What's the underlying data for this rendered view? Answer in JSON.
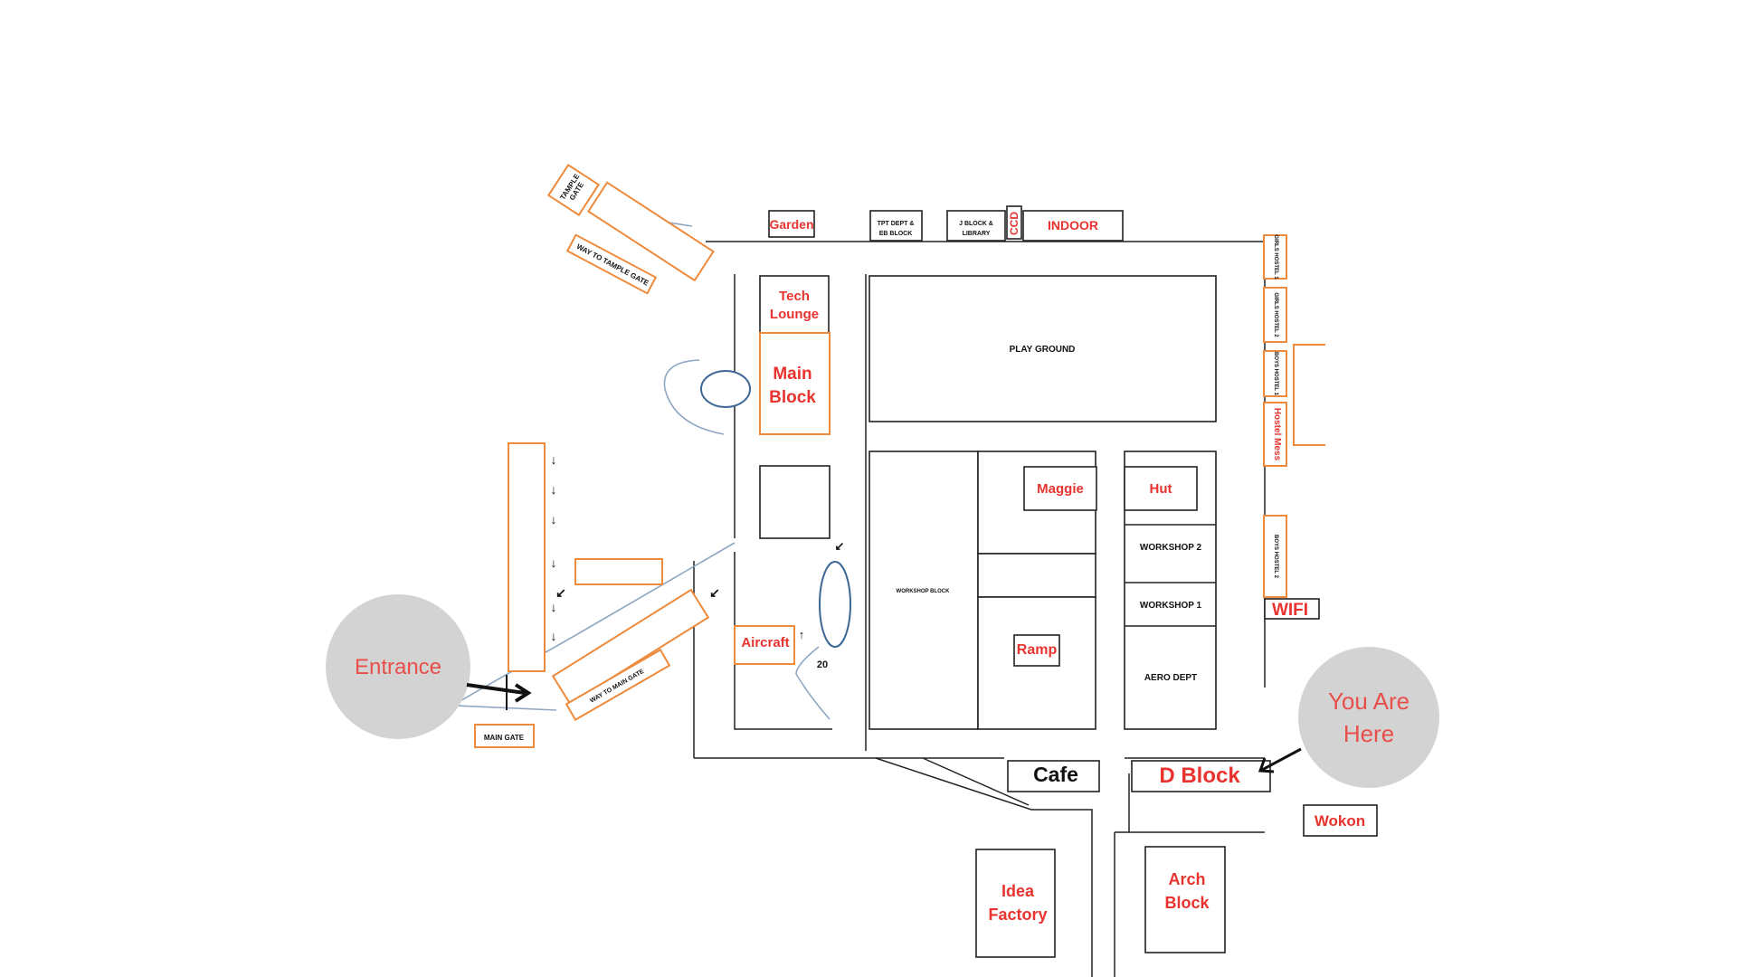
{
  "map": {
    "colors": {
      "orange_outline": "#ee8a3c",
      "red_text": "#e8332f",
      "marker_gray": "#d3d3d3",
      "marker_text": "#e84f4b",
      "oval_blue": "#3d6794"
    },
    "markers": {
      "entrance": "Entrance",
      "you_are_here_line1": "You Are",
      "you_are_here_line2": "Here"
    },
    "labels": {
      "garden": "Garden",
      "tpt_dept_line1": "TPT DEPT &",
      "tpt_dept_line2": "EB BLOCK",
      "j_block_line1": "J BLOCK  &",
      "j_block_line2": "LIBRARY",
      "ccd": "CCD",
      "indoor": "INDOOR",
      "temple_gate_line1": "TAMPLE",
      "temple_gate_line2": "GATE",
      "way_to_temple_gate": "WAY TO TAMPLE GATE",
      "tech_lounge_line1": "Tech",
      "tech_lounge_line2": "Lounge",
      "main_block_line1": "Main",
      "main_block_line2": "Block",
      "play_ground": "PLAY GROUND",
      "girls_hostel_1": "GIRLS HOSTEL 1",
      "girls_hostel_2": "GIRLS HOSTEL 2",
      "boys_hostel_1": "BOYS HOSTEL 1",
      "hostel_mess": "Hostel Mess",
      "boys_hostel_2": "BOYS HOSTEL 2",
      "wifi": "WIFI",
      "maggie": "Maggie",
      "hut": "Hut",
      "workshop_2": "WORKSHOP 2",
      "workshop_1": "WORKSHOP 1",
      "aero_dept": "AERO DEPT",
      "workshop_block": "WORKSHOP BLOCK",
      "ramp": "Ramp",
      "aircraft": "Aircraft",
      "twenty": "20",
      "way_to_main_gate": "WAY TO MAIN GATE",
      "main_gate": "MAIN GATE",
      "cafe": "Cafe",
      "d_block": "D Block",
      "wokon": "Wokon",
      "idea_factory_line1": "Idea",
      "idea_factory_line2": "Factory",
      "arch_block_line1": "Arch",
      "arch_block_line2": "Block"
    }
  }
}
